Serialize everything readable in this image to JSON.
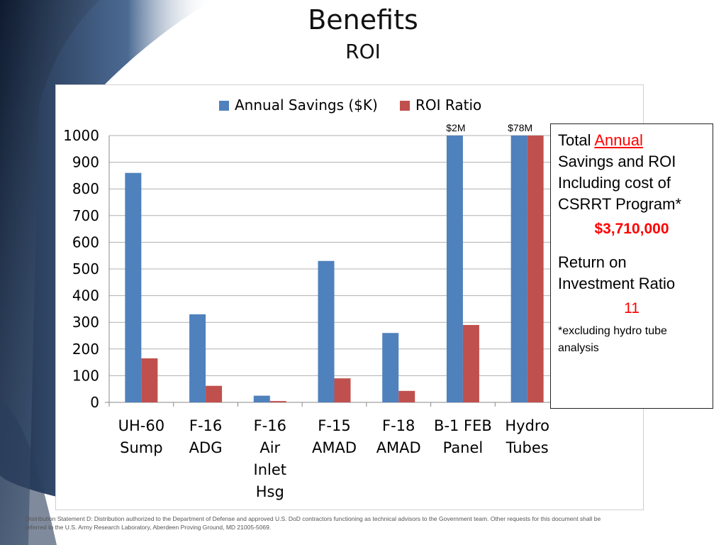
{
  "slide": {
    "title": "Benefits",
    "subtitle": "ROI"
  },
  "chart_data": {
    "type": "bar",
    "categories": [
      "UH-60 Sump",
      "F-16 ADG",
      "F-16 Air Inlet Hsg",
      "F-15 AMAD",
      "F-18 AMAD",
      "B-1 FEB Panel",
      "Hydro Tubes"
    ],
    "category_lines": [
      [
        "UH-60",
        "Sump"
      ],
      [
        "F-16",
        "ADG"
      ],
      [
        "F-16",
        "Air",
        "Inlet",
        "Hsg"
      ],
      [
        "F-15",
        "AMAD"
      ],
      [
        "F-18",
        "AMAD"
      ],
      [
        "B-1 FEB",
        "Panel"
      ],
      [
        "Hydro",
        "Tubes"
      ]
    ],
    "series": [
      {
        "name": "Annual Savings ($K)",
        "values": [
          860,
          330,
          25,
          530,
          260,
          1000,
          1000
        ],
        "color": "#4f81bd"
      },
      {
        "name": "ROI Ratio",
        "values": [
          165,
          62,
          5,
          90,
          43,
          290,
          1000
        ],
        "color": "#c0504d"
      }
    ],
    "ylim": [
      0,
      1000
    ],
    "yticks": [
      0,
      100,
      200,
      300,
      400,
      500,
      600,
      700,
      800,
      900,
      1000
    ],
    "grid": true,
    "legend": "top",
    "annotations": [
      {
        "category_index": 5,
        "text": "$2M"
      },
      {
        "category_index": 6,
        "text": "$78M"
      }
    ]
  },
  "info_box": {
    "line1_prefix": "Total ",
    "line1_accent": "Annual",
    "line1_rest": "Savings and ROI Including cost of CSRRT Program*",
    "total_value": "$3,710,000",
    "roi_label": "Return on Investment Ratio",
    "roi_value": "11",
    "note": "*excluding hydro tube analysis"
  },
  "footer": {
    "text": "Distribution Statement D: Distribution authorized to the Department of Defense and approved U.S. DoD contractors functioning as technical advisors to the Government team.  Other requests for this document shall be referred to the U.S. Army Research Laboratory, Aberdeen Proving Ground, MD 21005-5069."
  }
}
